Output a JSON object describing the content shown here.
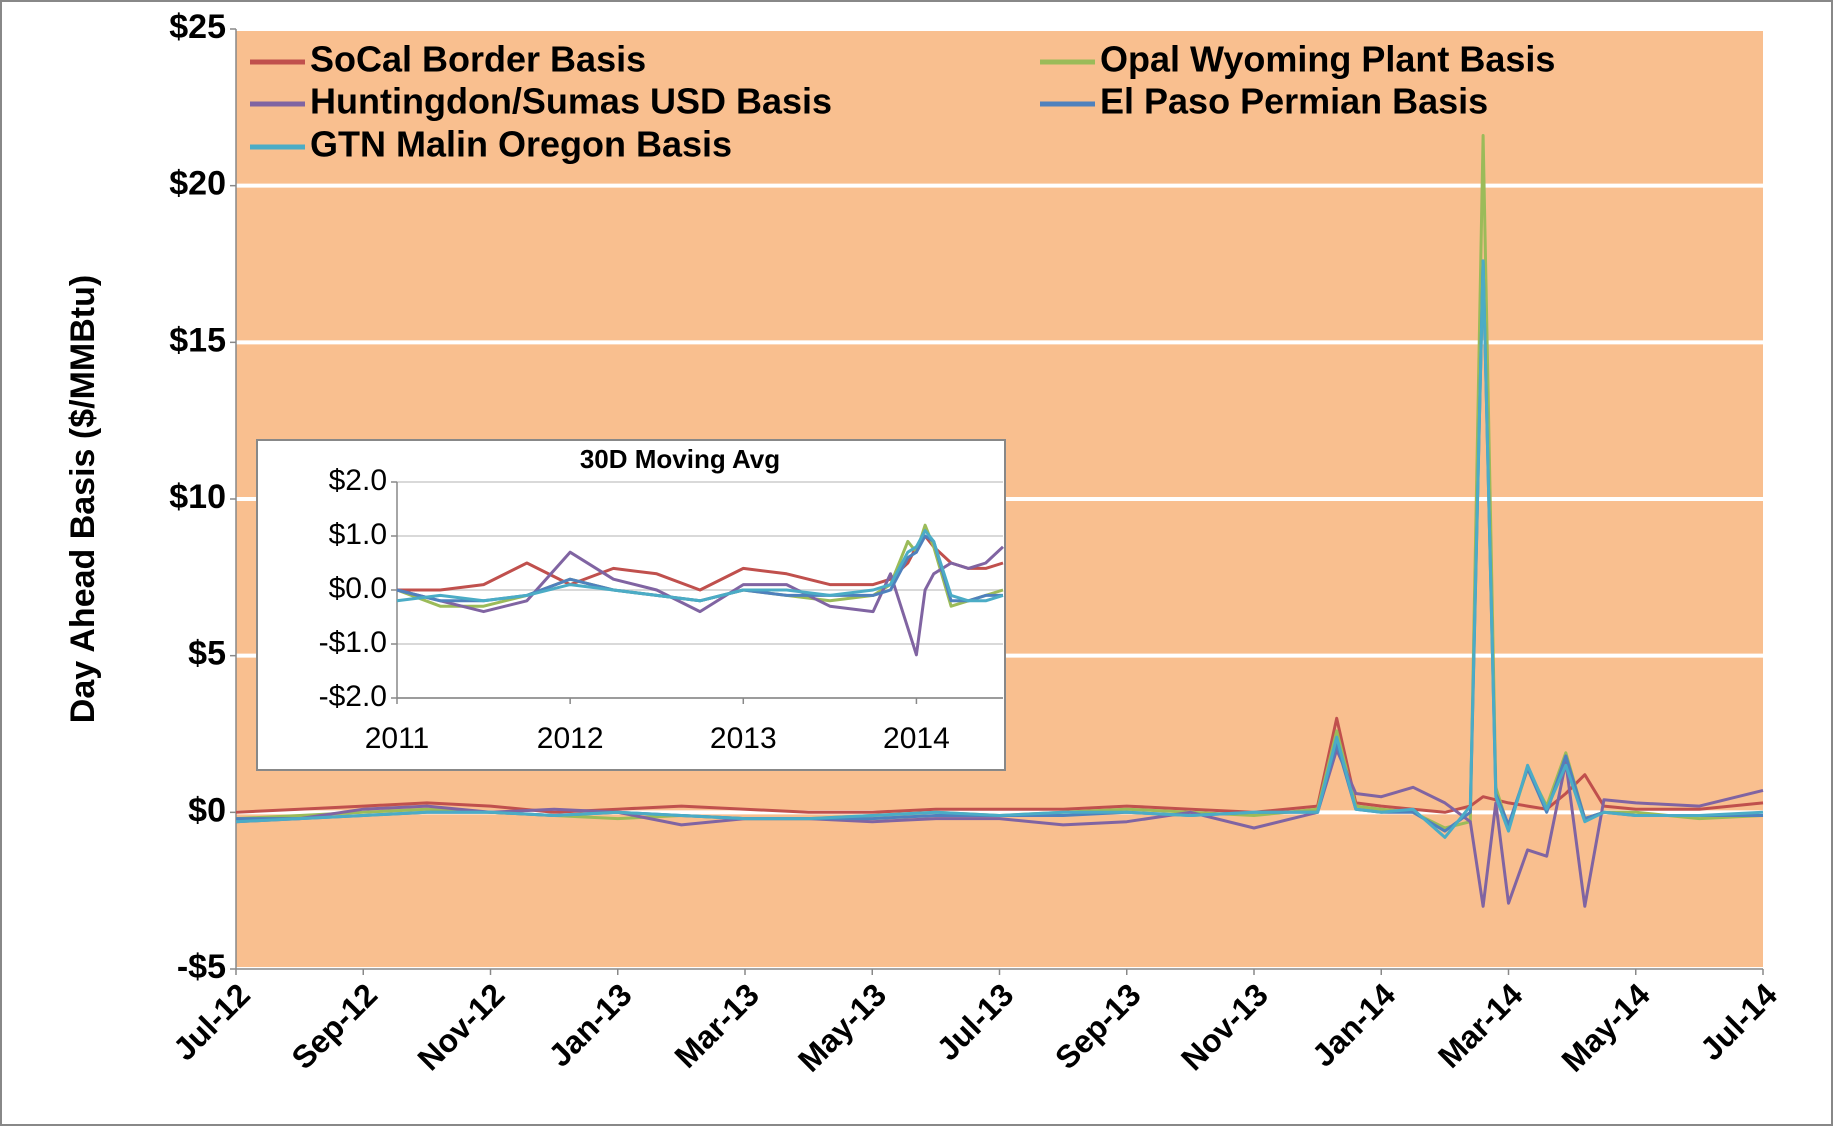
{
  "chart_data": [
    {
      "type": "line",
      "y_label": "Day Ahead Basis ($/MMBtu)",
      "background": "#f9bf8f",
      "grid": true,
      "legend": "top-left",
      "xlim": [
        0,
        24
      ],
      "xticks": [
        {
          "value": 0,
          "label": "Jul-12"
        },
        {
          "value": 2,
          "label": "Sep-12"
        },
        {
          "value": 4,
          "label": "Nov-12"
        },
        {
          "value": 6,
          "label": "Jan-13"
        },
        {
          "value": 8,
          "label": "Mar-13"
        },
        {
          "value": 10,
          "label": "May-13"
        },
        {
          "value": 12,
          "label": "Jul-13"
        },
        {
          "value": 14,
          "label": "Sep-13"
        },
        {
          "value": 16,
          "label": "Nov-13"
        },
        {
          "value": 18,
          "label": "Jan-14"
        },
        {
          "value": 20,
          "label": "Mar-14"
        },
        {
          "value": 22,
          "label": "May-14"
        },
        {
          "value": 24,
          "label": "Jul-14"
        }
      ],
      "ylim": [
        -5,
        25
      ],
      "yticks": [
        {
          "value": -5,
          "label": "-$5"
        },
        {
          "value": 0,
          "label": "$0"
        },
        {
          "value": 5,
          "label": "$5"
        },
        {
          "value": 10,
          "label": "$10"
        },
        {
          "value": 15,
          "label": "$15"
        },
        {
          "value": 20,
          "label": "$20"
        },
        {
          "value": 25,
          "label": "$25"
        }
      ],
      "x": [
        0,
        1,
        2,
        3,
        4,
        5,
        6,
        7,
        8,
        9,
        10,
        11,
        12,
        13,
        14,
        15,
        16,
        17,
        17.3,
        17.6,
        18,
        18.5,
        19,
        19.4,
        19.6,
        19.8,
        20,
        20.3,
        20.6,
        20.9,
        21.2,
        21.5,
        22,
        23,
        24
      ],
      "series": [
        {
          "name": "SoCal Border Basis",
          "color": "#c0504d",
          "values": [
            0.0,
            0.1,
            0.2,
            0.3,
            0.2,
            0.0,
            0.1,
            0.2,
            0.1,
            0.0,
            0.0,
            0.1,
            0.1,
            0.1,
            0.2,
            0.1,
            0.0,
            0.2,
            3.0,
            0.3,
            0.2,
            0.1,
            0.0,
            0.2,
            0.5,
            0.4,
            0.3,
            0.2,
            0.1,
            0.6,
            1.2,
            0.2,
            0.1,
            0.1,
            0.3
          ]
        },
        {
          "name": "Opal Wyoming Plant Basis",
          "color": "#9bbb59",
          "values": [
            -0.2,
            -0.1,
            0.0,
            0.1,
            0.0,
            -0.1,
            -0.2,
            -0.1,
            -0.2,
            -0.2,
            -0.1,
            0.0,
            -0.1,
            0.0,
            0.1,
            0.0,
            -0.1,
            0.1,
            2.6,
            0.2,
            0.1,
            0.0,
            -0.5,
            -0.3,
            21.6,
            0.8,
            -0.5,
            1.4,
            0.2,
            1.9,
            -0.2,
            0.0,
            0.0,
            -0.2,
            -0.1
          ]
        },
        {
          "name": "Huntingdon/Sumas USD Basis",
          "color": "#8064a2",
          "values": [
            -0.3,
            -0.2,
            0.1,
            0.2,
            0.0,
            0.1,
            0.0,
            -0.4,
            -0.2,
            -0.2,
            -0.3,
            -0.2,
            -0.2,
            -0.4,
            -0.3,
            0.0,
            -0.5,
            0.0,
            2.0,
            0.6,
            0.5,
            0.8,
            0.3,
            -0.3,
            -3.0,
            0.3,
            -2.9,
            -1.2,
            -1.4,
            1.6,
            -3.0,
            0.4,
            0.3,
            0.2,
            0.7
          ]
        },
        {
          "name": "El Paso Permian Basis",
          "color": "#4f81bd",
          "values": [
            -0.2,
            -0.2,
            -0.1,
            0.0,
            0.0,
            -0.1,
            0.0,
            -0.1,
            -0.2,
            -0.2,
            -0.2,
            -0.1,
            -0.1,
            -0.1,
            0.0,
            -0.1,
            0.0,
            0.0,
            2.2,
            0.1,
            0.0,
            0.0,
            -0.6,
            0.0,
            17.6,
            0.6,
            -0.4,
            1.4,
            0.0,
            1.8,
            -0.2,
            0.0,
            -0.1,
            -0.1,
            -0.1
          ]
        },
        {
          "name": "GTN Malin Oregon Basis",
          "color": "#4bacc6",
          "values": [
            -0.3,
            -0.2,
            -0.1,
            0.0,
            0.0,
            -0.1,
            0.0,
            -0.1,
            -0.2,
            -0.2,
            -0.1,
            0.0,
            -0.1,
            0.0,
            0.0,
            -0.1,
            0.0,
            0.0,
            2.4,
            0.1,
            0.0,
            0.1,
            -0.8,
            0.2,
            17.6,
            0.5,
            -0.6,
            1.5,
            0.1,
            1.5,
            -0.3,
            0.0,
            -0.1,
            -0.1,
            0.0
          ]
        }
      ]
    },
    {
      "type": "line",
      "title": "30D Moving Avg",
      "grid": true,
      "xlim": [
        2011,
        2014.5
      ],
      "xticks": [
        2011,
        2012,
        2013,
        2014
      ],
      "ylim": [
        -2,
        2
      ],
      "yticks": [
        {
          "value": -2,
          "label": "-$2.0"
        },
        {
          "value": -1,
          "label": "-$1.0"
        },
        {
          "value": 0,
          "label": "$0.0"
        },
        {
          "value": 1,
          "label": "$1.0"
        },
        {
          "value": 2,
          "label": "$2.0"
        }
      ],
      "x": [
        2011,
        2011.25,
        2011.5,
        2011.75,
        2012,
        2012.25,
        2012.5,
        2012.75,
        2013,
        2013.25,
        2013.5,
        2013.75,
        2013.85,
        2013.95,
        2014,
        2014.05,
        2014.1,
        2014.2,
        2014.3,
        2014.4,
        2014.5
      ],
      "series": [
        {
          "color": "#c0504d",
          "values": [
            0.0,
            0.0,
            0.1,
            0.5,
            0.1,
            0.4,
            0.3,
            0.0,
            0.4,
            0.3,
            0.1,
            0.1,
            0.2,
            0.5,
            0.8,
            1.0,
            0.8,
            0.5,
            0.4,
            0.4,
            0.5
          ]
        },
        {
          "color": "#9bbb59",
          "values": [
            0.0,
            -0.3,
            -0.3,
            -0.1,
            0.2,
            0.0,
            -0.1,
            -0.2,
            0.0,
            -0.1,
            -0.2,
            -0.1,
            0.1,
            0.9,
            0.7,
            1.2,
            0.8,
            -0.3,
            -0.2,
            -0.1,
            0.0
          ]
        },
        {
          "color": "#8064a2",
          "values": [
            0.0,
            -0.2,
            -0.4,
            -0.2,
            0.7,
            0.2,
            0.0,
            -0.4,
            0.1,
            0.1,
            -0.3,
            -0.4,
            0.3,
            -0.7,
            -1.2,
            0.0,
            0.3,
            0.5,
            0.4,
            0.5,
            0.8
          ]
        },
        {
          "color": "#4f81bd",
          "values": [
            0.0,
            -0.2,
            -0.2,
            -0.1,
            0.2,
            0.0,
            -0.1,
            -0.2,
            0.0,
            -0.1,
            -0.1,
            -0.1,
            0.0,
            0.6,
            0.7,
            1.0,
            0.9,
            -0.2,
            -0.2,
            -0.1,
            -0.1
          ]
        },
        {
          "color": "#4bacc6",
          "values": [
            -0.2,
            -0.1,
            -0.2,
            -0.1,
            0.1,
            0.0,
            -0.1,
            -0.2,
            0.0,
            0.0,
            -0.1,
            0.0,
            0.1,
            0.7,
            0.8,
            1.1,
            0.9,
            -0.1,
            -0.2,
            -0.2,
            -0.1
          ]
        }
      ]
    }
  ]
}
